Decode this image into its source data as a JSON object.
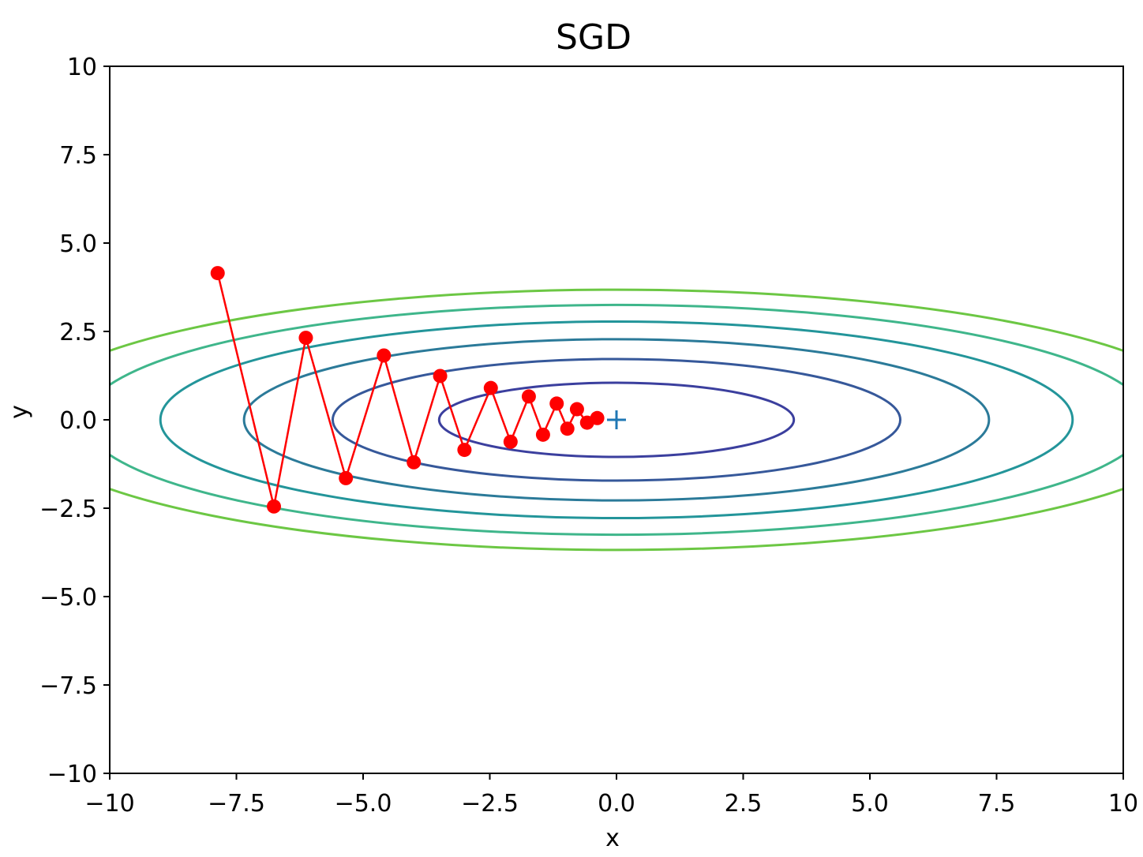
{
  "chart_data": {
    "type": "line",
    "title": "SGD",
    "xlabel": "x",
    "ylabel": "y",
    "xlim": [
      -10,
      10
    ],
    "ylim": [
      -10,
      10
    ],
    "grid": false,
    "x_ticks": [
      -10,
      -7.5,
      -5.0,
      -2.5,
      0.0,
      2.5,
      5.0,
      7.5,
      10
    ],
    "x_tick_labels": [
      "−10",
      "−7.5",
      "−5.0",
      "−2.5",
      "0.0",
      "2.5",
      "5.0",
      "7.5",
      "10"
    ],
    "y_ticks": [
      10,
      7.5,
      5.0,
      2.5,
      0.0,
      -2.5,
      -5.0,
      -7.5,
      -10
    ],
    "y_tick_labels": [
      "10",
      "7.5",
      "5.0",
      "2.5",
      "0.0",
      "−2.5",
      "−5.0",
      "−7.5",
      "−10"
    ],
    "contours": [
      {
        "semi_axis_x": 3.5,
        "semi_axis_y": 1.05,
        "color": "#3b3f9e"
      },
      {
        "semi_axis_x": 5.6,
        "semi_axis_y": 1.72,
        "color": "#36589a"
      },
      {
        "semi_axis_x": 7.35,
        "semi_axis_y": 2.28,
        "color": "#2b7a99"
      },
      {
        "semi_axis_x": 9.0,
        "semi_axis_y": 2.78,
        "color": "#23959a"
      },
      {
        "semi_axis_x": 10.5,
        "semi_axis_y": 3.25,
        "color": "#3fb68b"
      },
      {
        "semi_axis_x": 11.8,
        "semi_axis_y": 3.68,
        "color": "#6cc744"
      }
    ],
    "series": [
      {
        "color": "#ff0000",
        "marker": "circle",
        "x": [
          -7.87,
          -6.76,
          -6.13,
          -5.34,
          -4.59,
          -4.0,
          -3.48,
          -3.0,
          -2.48,
          -2.09,
          -1.73,
          -1.45,
          -1.18,
          -0.97,
          -0.78,
          -0.58,
          -0.38
        ],
        "y": [
          4.15,
          -2.45,
          2.32,
          -1.65,
          1.82,
          -1.2,
          1.24,
          -0.85,
          0.9,
          -0.62,
          0.66,
          -0.42,
          0.46,
          -0.25,
          0.3,
          -0.08,
          0.05
        ]
      }
    ],
    "minimum_marker": {
      "x": 0.0,
      "y": 0.0,
      "marker": "+",
      "color": "#1f77b4"
    }
  }
}
